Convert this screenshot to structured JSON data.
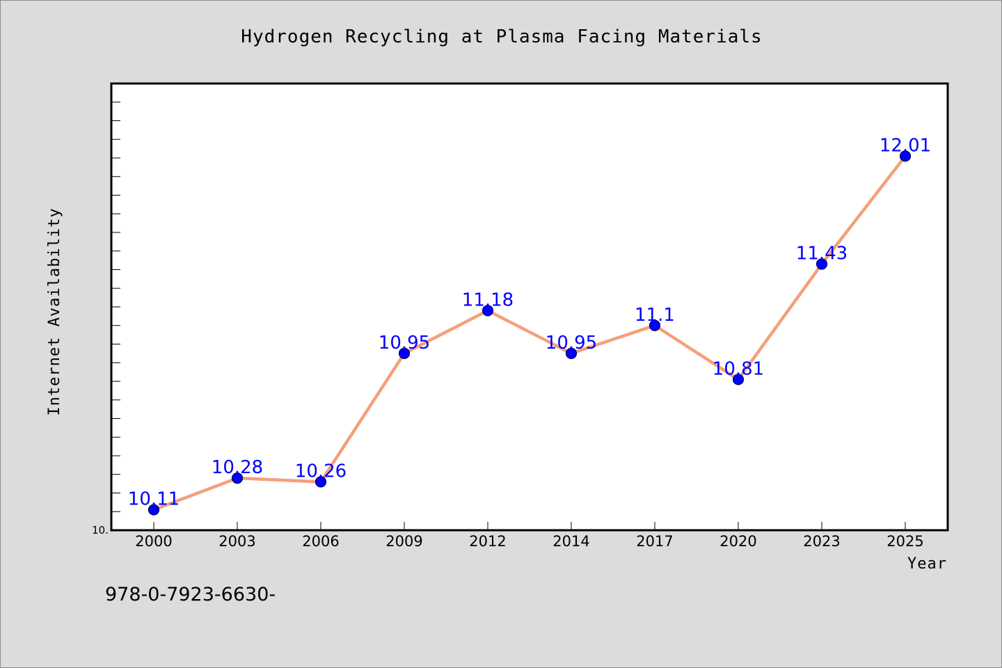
{
  "chart_data": {
    "type": "line",
    "title": "Hydrogen Recycling at Plasma Facing Materials",
    "xlabel": "Year",
    "ylabel": "Internet Availability",
    "categories": [
      "2000",
      "2003",
      "2006",
      "2009",
      "2012",
      "2014",
      "2017",
      "2020",
      "2023",
      "2025"
    ],
    "series": [
      {
        "values": [
          10.11,
          10.28,
          10.26,
          10.95,
          11.18,
          10.95,
          11.1,
          10.81,
          11.43,
          12.01
        ],
        "labels": [
          "10.11",
          "10.28",
          "10.26",
          "10.95",
          "11.18",
          "10.95",
          "11.1",
          "10.81",
          "11.43",
          "12.01"
        ],
        "line_color": "#f4a07a",
        "marker_color": "#0000ff"
      }
    ],
    "ylim": [
      10.0,
      12.4
    ],
    "ytick_labels": [
      "10."
    ],
    "grid": false,
    "legend": "none"
  },
  "footer": {
    "text": "978-0-7923-6630-"
  }
}
